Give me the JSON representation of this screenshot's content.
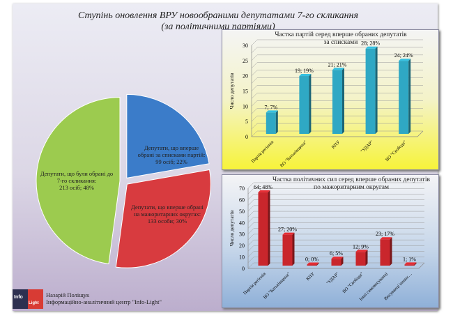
{
  "title_line1": "Ступінь оновлення ВРУ новообраними депутатами 7-го скликання",
  "title_line2": "(за політичними партіями)",
  "footer": {
    "author": "Назарій Поліщук",
    "org": "Інформаційно-аналітичний центр \"Info-Light\"",
    "logo_left": "Info",
    "logo_right": "Light"
  },
  "chart_data": [
    {
      "type": "pie",
      "slices": [
        {
          "label": "Депутати,  що вперше обрані за списками партій:",
          "value_label": "99 осіб;  22%",
          "value": 99,
          "percent": 22,
          "color": "#3b7cc9"
        },
        {
          "label": "Депутати,  що вперше обрані на мажоритарних округах:",
          "value_label": "133 особи;  30%",
          "value": 133,
          "percent": 30,
          "color": "#d83b3f"
        },
        {
          "label": "Депутати,  що були обрані до 7-го скликання:",
          "value_label": "213 осіб;  48%",
          "value": 213,
          "percent": 48,
          "color": "#9ccb4f"
        }
      ]
    },
    {
      "type": "bar",
      "title_line1": "Частка партій серед вперше обраних депутатів",
      "title_line2": "за списками",
      "ylabel": "Число депутатів",
      "ylim": [
        0,
        30
      ],
      "yticks": [
        0,
        5,
        10,
        15,
        20,
        25,
        30
      ],
      "color": "#2fa8c4",
      "categories": [
        "Партія регіонів",
        "ВО \"Батьківщина\"",
        "КПУ",
        "\"УДАР\"",
        "ВО \"Свобода\""
      ],
      "values": [
        7,
        19,
        21,
        28,
        24
      ],
      "data_labels": [
        "7; 7%",
        "19; 19%",
        "21; 21%",
        "28; 28%",
        "24; 24%"
      ]
    },
    {
      "type": "bar",
      "title_line1": "Частка політичних сил серед вперше обраних депутатів",
      "title_line2": "по  мажоритарним округам",
      "ylabel": "Число депутатів",
      "ylim": [
        0,
        70
      ],
      "yticks": [
        0,
        10,
        20,
        30,
        40,
        50,
        60,
        70
      ],
      "color": "#c9262c",
      "categories": [
        "Партія регіонів",
        "ВО \"Батьківщина\"",
        "КПУ",
        "\"УДАР\"",
        "ВО \"Свобода\"",
        "Інші самовисуванці",
        "Висуванці інших…"
      ],
      "values": [
        64,
        27,
        0,
        6,
        12,
        23,
        1
      ],
      "data_labels": [
        "64; 48%",
        "27; 20%",
        "0; 0%",
        "6; 5%",
        "12; 9%",
        "23; 17%",
        "1; 1%"
      ]
    }
  ]
}
